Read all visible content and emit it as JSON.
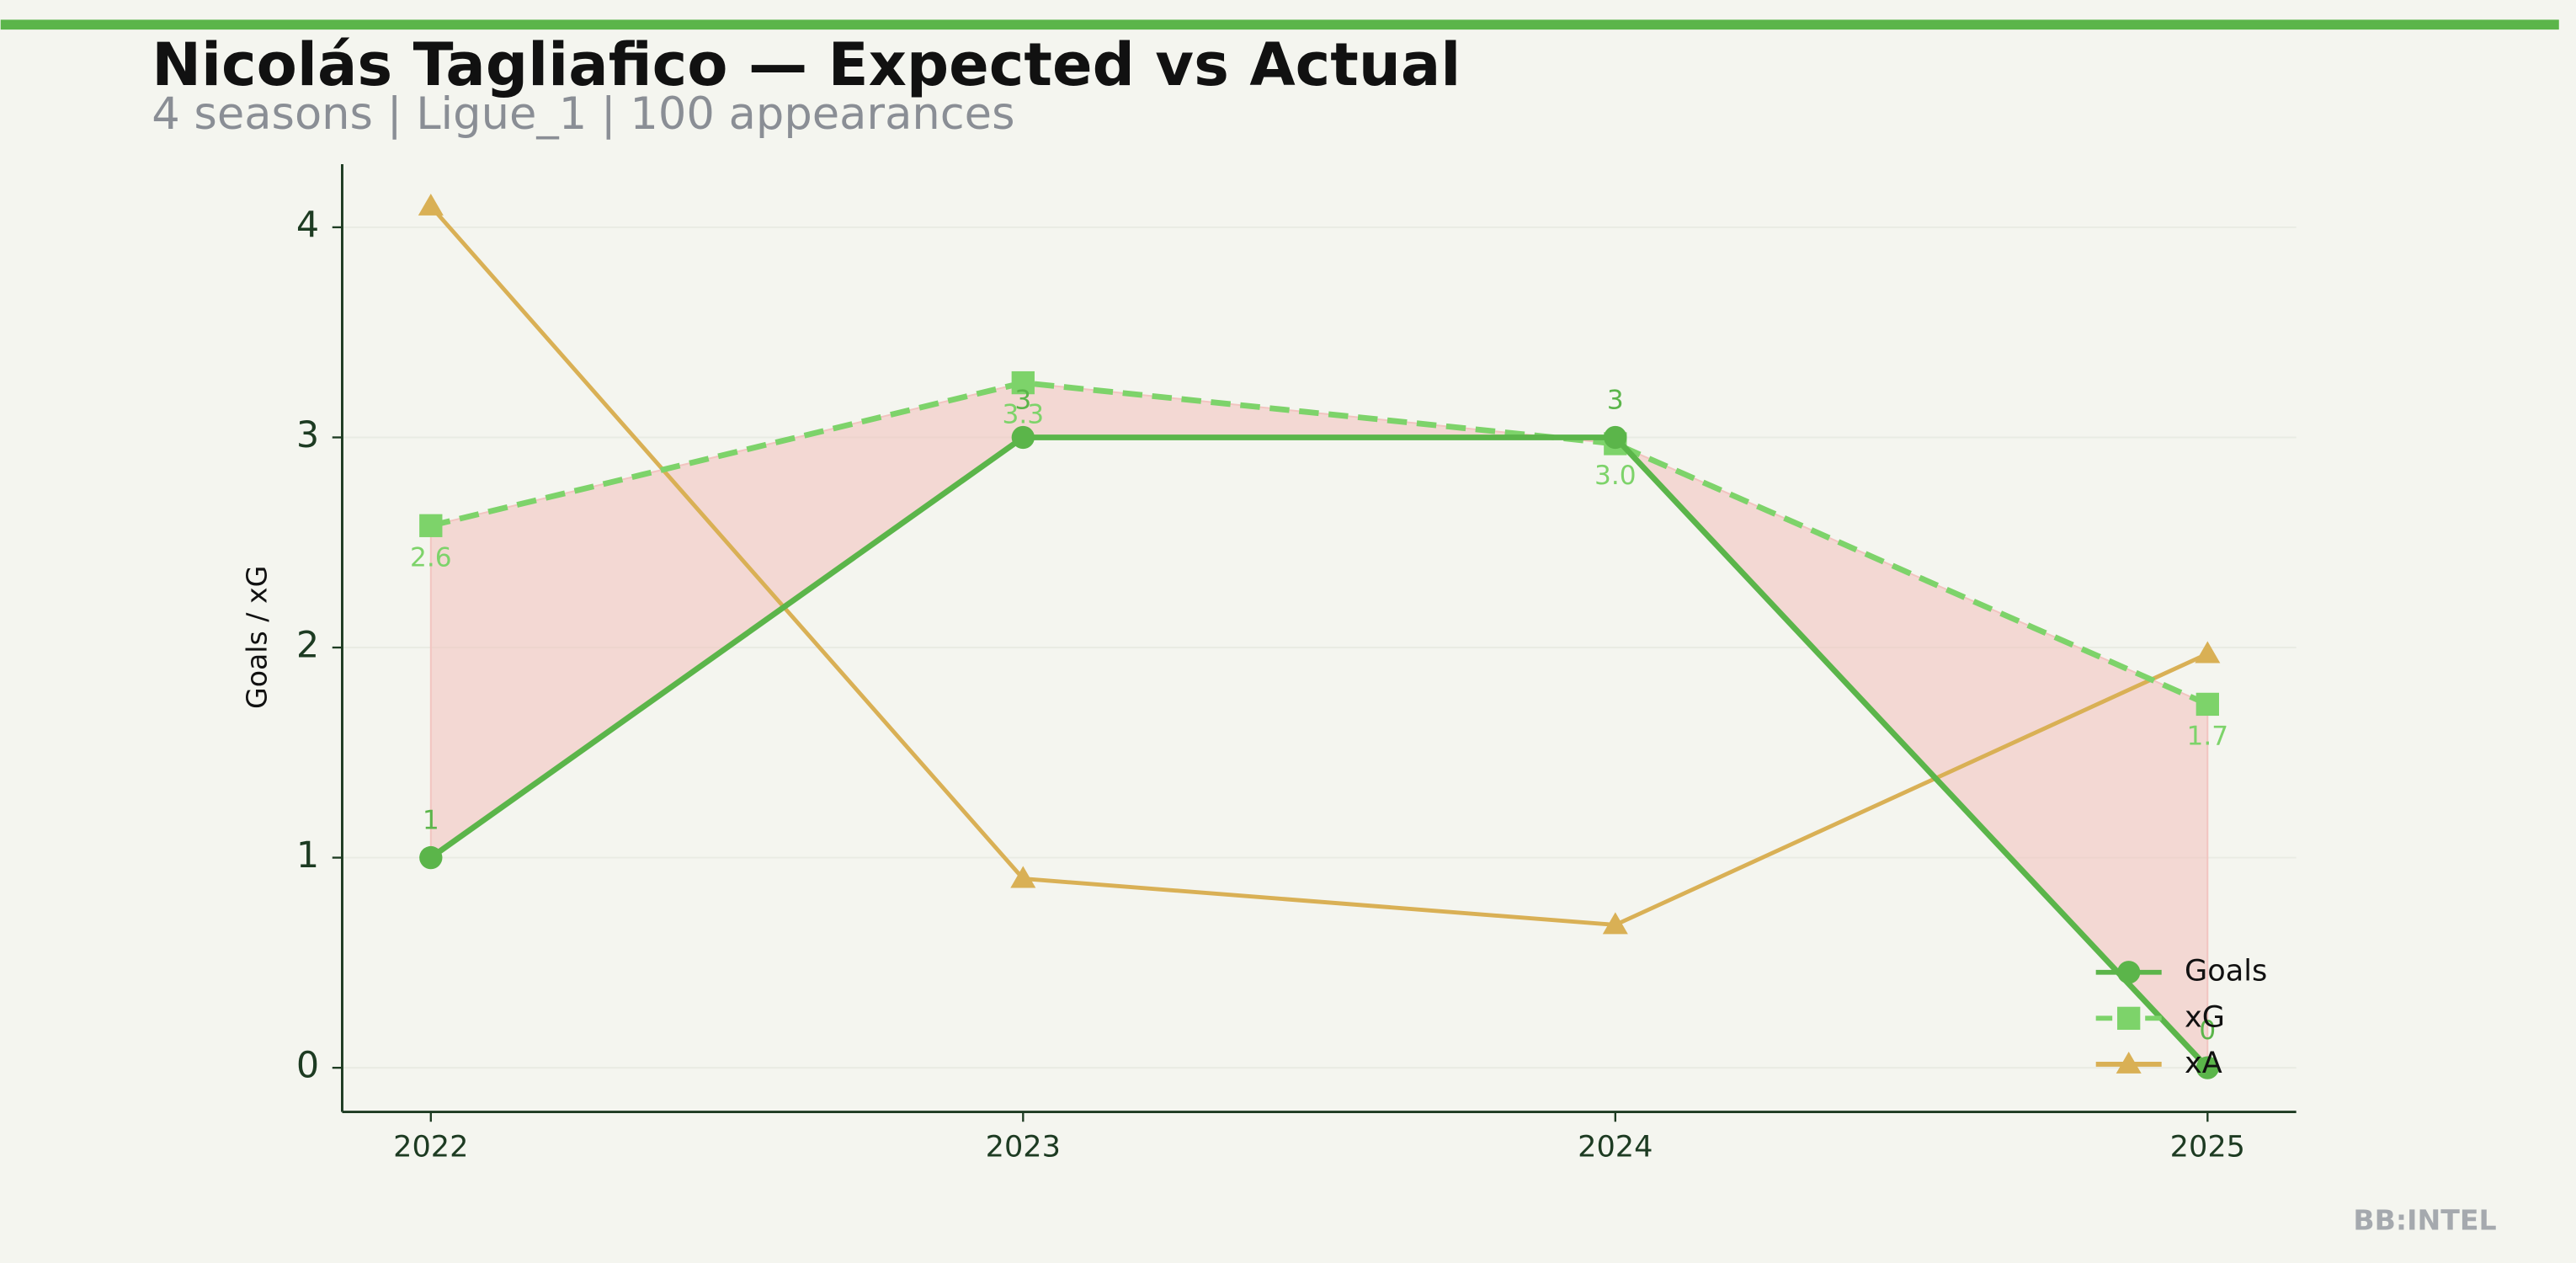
{
  "chart_data": {
    "type": "line",
    "title": "Nicolás Tagliafico — Expected vs Actual",
    "subtitle": "4 seasons | Ligue_1 | 100 appearances",
    "y_label": "Goals / xG",
    "watermark": "BB:INTEL",
    "categories": [
      "2022",
      "2023",
      "2024",
      "2025"
    ],
    "series": [
      {
        "name": "Goals",
        "color": "#5bb54a",
        "style": "solid",
        "marker": "circle",
        "values": [
          1,
          3,
          3,
          0
        ]
      },
      {
        "name": "xG",
        "color": "#7dd36a",
        "style": "dashed",
        "marker": "square",
        "values": [
          2.58,
          3.26,
          2.97,
          1.73
        ],
        "value_labels": [
          "2.6",
          "3.3",
          "3.0",
          "1.7"
        ]
      },
      {
        "name": "xA",
        "color": "#d9b055",
        "style": "solid",
        "marker": "triangle",
        "values": [
          4.1,
          0.9,
          0.68,
          1.97
        ]
      }
    ],
    "fill_between": {
      "series": [
        0,
        1
      ],
      "color": "#f2c4c0"
    },
    "ylim": [
      -0.21,
      4.3
    ],
    "yticks": [
      0,
      1,
      2,
      3,
      4
    ],
    "grid": true,
    "legend": "lower right"
  }
}
